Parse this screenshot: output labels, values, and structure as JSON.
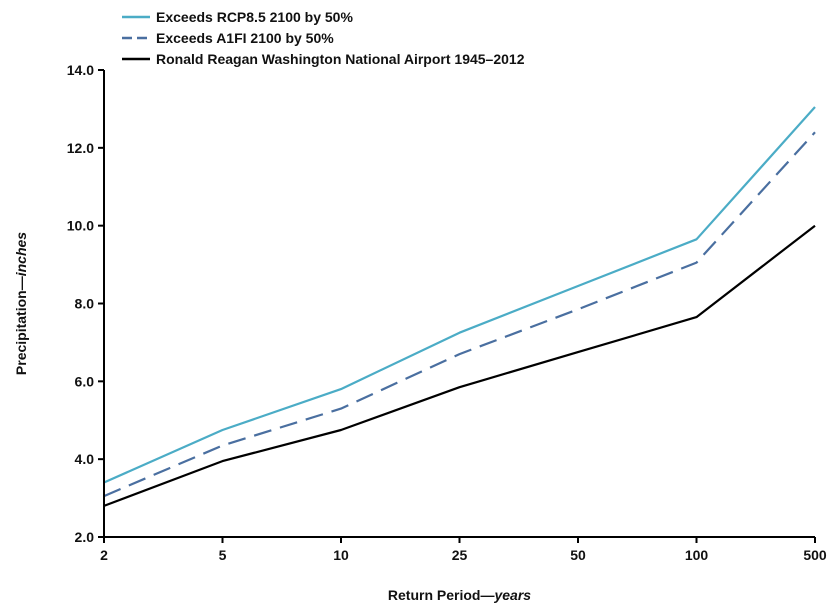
{
  "chart_data": {
    "type": "line",
    "x": [
      "2",
      "5",
      "10",
      "25",
      "50",
      "100",
      "500"
    ],
    "xlabel": {
      "main": "Return Period—",
      "italic": "years"
    },
    "ylabel": {
      "main": "Precipitation—",
      "italic": "inches"
    },
    "ylim": [
      2.0,
      14.0
    ],
    "yticks": [
      "2.0",
      "4.0",
      "6.0",
      "8.0",
      "10.0",
      "12.0",
      "14.0"
    ],
    "grid": false,
    "legend_position": "top-left",
    "series": [
      {
        "name": "Exceeds RCP8.5 2100 by 50%",
        "color": "#4bacc6",
        "dash": "solid",
        "values": [
          3.4,
          4.75,
          5.8,
          7.25,
          8.45,
          9.65,
          13.05
        ]
      },
      {
        "name": "Exceeds A1FI 2100 by 50%",
        "color": "#4a6fa0",
        "dash": "dashed",
        "values": [
          3.05,
          4.35,
          5.3,
          6.7,
          7.85,
          9.05,
          12.4
        ]
      },
      {
        "name": "Ronald Reagan Washington National Airport 1945–2012",
        "color": "#000000",
        "dash": "solid",
        "values": [
          2.8,
          3.95,
          4.75,
          5.85,
          6.75,
          7.65,
          10.0
        ]
      }
    ]
  }
}
